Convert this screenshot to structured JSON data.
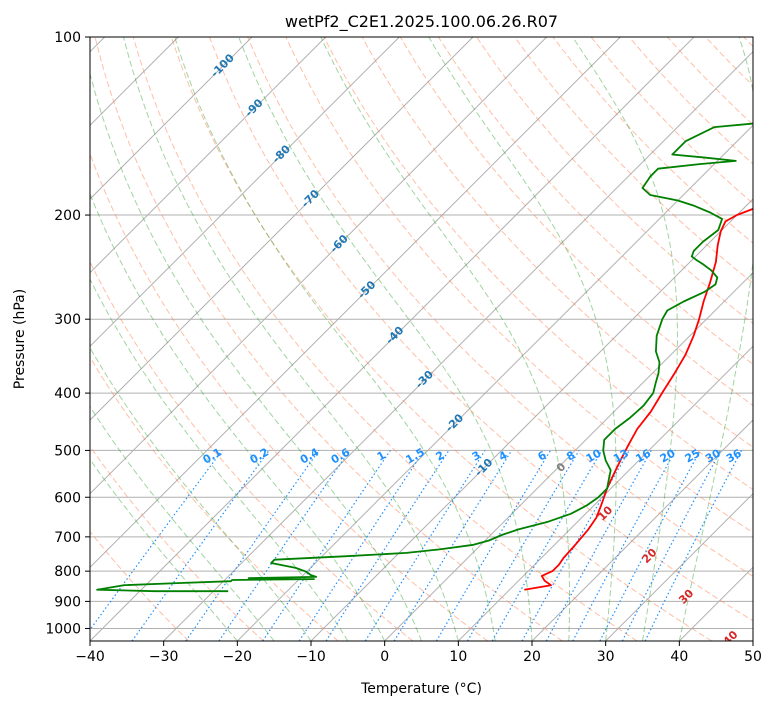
{
  "chart_data": {
    "type": "skew-t log-p diagram",
    "title": "wetPf2_C2E1.2025.100.06.26.R07",
    "xlabel": "Temperature (°C)",
    "ylabel": "Pressure (hPa)",
    "xlim": [
      -40,
      50
    ],
    "ylim": [
      1050,
      100
    ],
    "y_scale": "log",
    "x_ticks": [
      -40,
      -30,
      -20,
      -10,
      0,
      10,
      20,
      30,
      40,
      50
    ],
    "x_tick_labels": [
      "−40",
      "−30",
      "−20",
      "−10",
      "0",
      "10",
      "20",
      "30",
      "40",
      "50"
    ],
    "y_ticks": [
      100,
      200,
      300,
      400,
      500,
      600,
      700,
      800,
      900,
      1000
    ],
    "y_tick_labels": [
      "100",
      "200",
      "300",
      "400",
      "500",
      "600",
      "700",
      "800",
      "900",
      "1000"
    ],
    "grid": true,
    "colors": {
      "temperature": "#ff0000",
      "dewpoint": "#008000",
      "isotherm_labels": "#1f77b4",
      "mixing_ratio_labels": "#1e90ff",
      "wet_bulb_zero_label": "#808080",
      "wet_bulb_labels": "#d62728",
      "dry_adiabats": "#ff7f50",
      "moist_adiabats": "#2ca02c",
      "grid": "#b0b0b0"
    },
    "series": [
      {
        "line": "temperature",
        "points": [
          [
            12,
            860
          ],
          [
            15,
            845
          ],
          [
            13.5,
            830
          ],
          [
            12.5,
            815
          ],
          [
            13.3,
            800
          ],
          [
            13.3,
            780
          ],
          [
            13.0,
            760
          ],
          [
            12.8,
            720
          ],
          [
            12.5,
            680
          ],
          [
            12.0,
            650
          ],
          [
            11.0,
            620
          ],
          [
            9.5,
            580
          ],
          [
            8.5,
            550
          ],
          [
            7.5,
            520
          ],
          [
            6.5,
            490
          ],
          [
            5.5,
            460
          ],
          [
            5.0,
            430
          ],
          [
            4.0,
            400
          ],
          [
            3.0,
            370
          ],
          [
            2.0,
            345
          ],
          [
            0.5,
            320
          ],
          [
            -1.0,
            300
          ],
          [
            -2.8,
            280
          ],
          [
            -4.5,
            260
          ],
          [
            -6.5,
            240
          ],
          [
            -8.5,
            225
          ],
          [
            -10.0,
            213
          ],
          [
            -10.7,
            205
          ],
          [
            -10.0,
            200
          ],
          [
            -8.0,
            193
          ],
          [
            -5.5,
            186
          ],
          [
            -3.5,
            180
          ],
          [
            -2.5,
            176
          ],
          [
            -2.0,
            170
          ],
          [
            -1.5,
            165
          ],
          [
            -0.5,
            160
          ],
          [
            0.0,
            155
          ],
          [
            1.0,
            148
          ],
          [
            1.8,
            140
          ],
          [
            2.0,
            135
          ],
          [
            2.0,
            130
          ],
          [
            2.5,
            125
          ],
          [
            3.2,
            120
          ],
          [
            4.0,
            115
          ],
          [
            4.0,
            110
          ],
          [
            4.5,
            105
          ],
          [
            5.5,
            100
          ]
        ]
      },
      {
        "line": "dewpoint",
        "points": [
          [
            -28,
            865
          ],
          [
            -38,
            865
          ],
          [
            -46,
            860
          ],
          [
            -43,
            845
          ],
          [
            -36,
            838
          ],
          [
            -29,
            832
          ],
          [
            -29,
            828
          ],
          [
            -18,
            825
          ],
          [
            -27,
            822
          ],
          [
            -18,
            818
          ],
          [
            -19,
            812
          ],
          [
            -20,
            802
          ],
          [
            -22,
            790
          ],
          [
            -26,
            775
          ],
          [
            -26,
            765
          ],
          [
            -17,
            755
          ],
          [
            -9,
            745
          ],
          [
            -5,
            735
          ],
          [
            -1,
            722
          ],
          [
            0.5,
            710
          ],
          [
            1.5,
            695
          ],
          [
            3.0,
            680
          ],
          [
            6.0,
            660
          ],
          [
            8.0,
            640
          ],
          [
            9.0,
            620
          ],
          [
            9.5,
            600
          ],
          [
            9.5,
            580
          ],
          [
            8.5,
            560
          ],
          [
            7.5,
            540
          ],
          [
            5.5,
            520
          ],
          [
            3.8,
            500
          ],
          [
            2.5,
            480
          ],
          [
            2.5,
            460
          ],
          [
            3.0,
            440
          ],
          [
            3.2,
            420
          ],
          [
            2.8,
            400
          ],
          [
            1.8,
            385
          ],
          [
            0.8,
            370
          ],
          [
            -0.5,
            355
          ],
          [
            -2.5,
            340
          ],
          [
            -4.5,
            320
          ],
          [
            -6.0,
            300
          ],
          [
            -6.5,
            290
          ],
          [
            -5.5,
            280
          ],
          [
            -4.0,
            270
          ],
          [
            -3.5,
            262
          ],
          [
            -4.2,
            255
          ],
          [
            -6.0,
            248
          ],
          [
            -8.0,
            242
          ],
          [
            -9.5,
            238
          ],
          [
            -10.5,
            235
          ],
          [
            -11.0,
            230
          ],
          [
            -11.0,
            222
          ],
          [
            -10.5,
            212
          ],
          [
            -11.5,
            203
          ],
          [
            -14.0,
            198
          ],
          [
            -17.0,
            193
          ],
          [
            -20.0,
            189
          ],
          [
            -24.5,
            185
          ],
          [
            -26.5,
            180
          ],
          [
            -27.0,
            172
          ],
          [
            -27.0,
            167
          ],
          [
            -22.0,
            164
          ],
          [
            -17.5,
            162
          ],
          [
            -22.0,
            160
          ],
          [
            -27.0,
            158
          ],
          [
            -27.0,
            150
          ],
          [
            -25.0,
            142
          ],
          [
            -20.0,
            140
          ],
          [
            -12.0,
            140
          ],
          [
            -7.0,
            138
          ],
          [
            -6.0,
            135
          ],
          [
            -5.5,
            130
          ],
          [
            -4.5,
            125
          ],
          [
            -3.5,
            120
          ],
          [
            -2.5,
            115
          ],
          [
            -1.0,
            110
          ],
          [
            0.5,
            105
          ],
          [
            1.5,
            100
          ]
        ]
      }
    ],
    "isotherm_labels": [
      {
        "text": "-100",
        "t": -100,
        "p": 112
      },
      {
        "text": "-90",
        "t": -90,
        "p": 132
      },
      {
        "text": "-80",
        "t": -80,
        "p": 158
      },
      {
        "text": "-70",
        "t": -70,
        "p": 188
      },
      {
        "text": "-60",
        "t": -60,
        "p": 224
      },
      {
        "text": "-50",
        "t": -50,
        "p": 268
      },
      {
        "text": "-40",
        "t": -40,
        "p": 320
      },
      {
        "text": "-30",
        "t": -30,
        "p": 380
      },
      {
        "text": "-20",
        "t": -20,
        "p": 450
      },
      {
        "text": "-10",
        "t": -10,
        "p": 535
      }
    ],
    "mixing_ratio_labels": [
      "0.1",
      "0.2",
      "0.4",
      "0.6",
      "1",
      "1.5",
      "2",
      "3",
      "4",
      "6",
      "8",
      "10",
      "13",
      "16",
      "20",
      "25",
      "30",
      "36"
    ],
    "wet_bulb_labels": [
      {
        "text": "0",
        "t": 24,
        "p": 535
      },
      {
        "text": "10",
        "t": 30,
        "p": 640
      },
      {
        "text": "20",
        "t": 36,
        "p": 755
      },
      {
        "text": "30",
        "t": 41,
        "p": 885
      },
      {
        "text": "40",
        "t": 47,
        "p": 1040
      }
    ]
  }
}
